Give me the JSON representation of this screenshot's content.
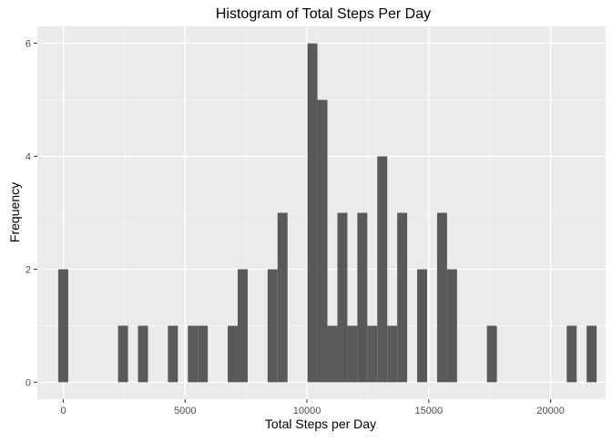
{
  "colors": {
    "panel_background": "#ebebeb",
    "grid_major": "#ffffff",
    "grid_minor": "#f5f5f5",
    "bar_fill": "#595959",
    "tick_mark": "#333333"
  },
  "chart_data": {
    "type": "bar",
    "subtype": "histogram",
    "title": "Histogram of Total Steps Per Day",
    "xlabel": "Total Steps per Day",
    "ylabel": "Frequency",
    "xlim": [
      -1062,
      22256
    ],
    "ylim": [
      -0.3,
      6.3
    ],
    "x_ticks": [
      0,
      5000,
      10000,
      15000,
      20000
    ],
    "x_tick_labels": [
      "0",
      "5000",
      "10000",
      "15000",
      "20000"
    ],
    "y_ticks": [
      0,
      2,
      4,
      6
    ],
    "y_tick_labels": [
      "0",
      "2",
      "4",
      "6"
    ],
    "bin_width": 409,
    "grid": true,
    "legend": "none",
    "bins": [
      {
        "x": 0,
        "count": 2
      },
      {
        "x": 2455,
        "count": 1
      },
      {
        "x": 3273,
        "count": 1
      },
      {
        "x": 4500,
        "count": 1
      },
      {
        "x": 5318,
        "count": 1
      },
      {
        "x": 5727,
        "count": 1
      },
      {
        "x": 6955,
        "count": 1
      },
      {
        "x": 7364,
        "count": 2
      },
      {
        "x": 8591,
        "count": 2
      },
      {
        "x": 9000,
        "count": 3
      },
      {
        "x": 10227,
        "count": 6
      },
      {
        "x": 10636,
        "count": 5
      },
      {
        "x": 11045,
        "count": 1
      },
      {
        "x": 11455,
        "count": 3
      },
      {
        "x": 11864,
        "count": 1
      },
      {
        "x": 12273,
        "count": 3
      },
      {
        "x": 12682,
        "count": 1
      },
      {
        "x": 13091,
        "count": 4
      },
      {
        "x": 13500,
        "count": 1
      },
      {
        "x": 13909,
        "count": 3
      },
      {
        "x": 14727,
        "count": 2
      },
      {
        "x": 15545,
        "count": 3
      },
      {
        "x": 15955,
        "count": 2
      },
      {
        "x": 17591,
        "count": 1
      },
      {
        "x": 20864,
        "count": 1
      },
      {
        "x": 21682,
        "count": 1
      }
    ]
  }
}
